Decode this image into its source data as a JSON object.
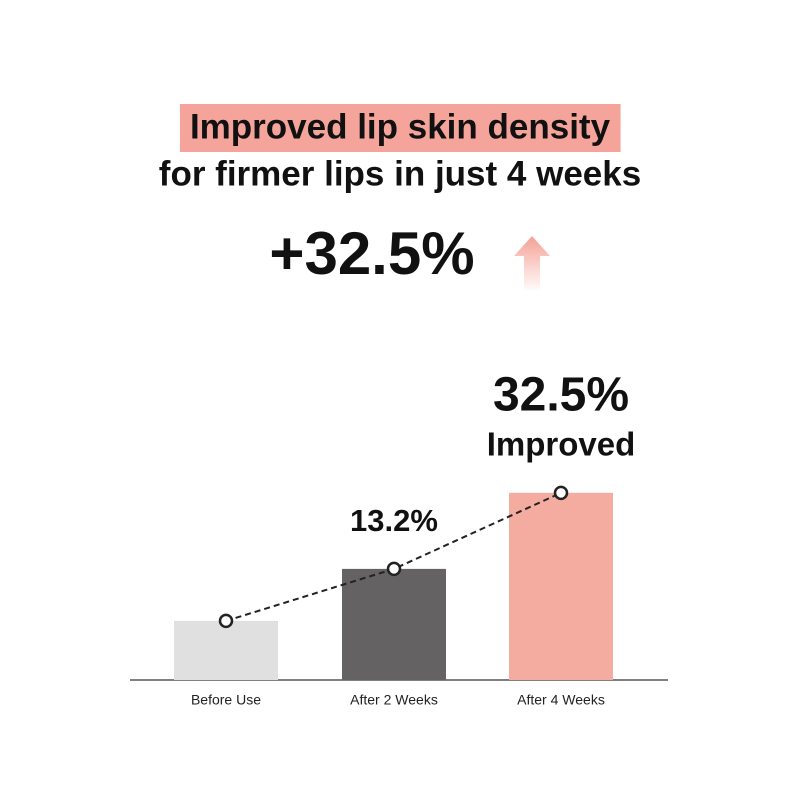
{
  "chart_data": {
    "type": "bar",
    "title": "Improved lip skin density",
    "subtitle": "for firmer lips in just 4 weeks",
    "headline": "+32.5%",
    "annotation": "Improved",
    "title_highlight_color": "#f5a49b",
    "categories": [
      "Before Use",
      "After 2 Weeks",
      "After 4 Weeks"
    ],
    "values": [
      0,
      13.2,
      32.5
    ],
    "value_labels": [
      null,
      "13.2%",
      "32.5%"
    ],
    "colors": [
      "#e0e0e0",
      "#646262",
      "#f4aba0"
    ],
    "ylim": [
      -15,
      35
    ]
  }
}
